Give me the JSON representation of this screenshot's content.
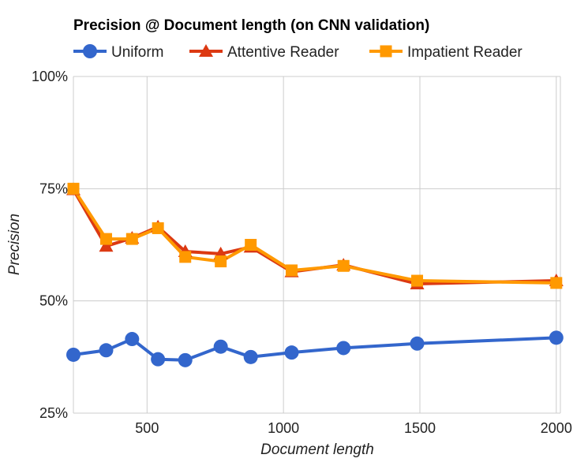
{
  "chart_data": {
    "type": "line",
    "title": "Precision @ Document length (on CNN validation)",
    "xlabel": "Document length",
    "ylabel": "Precision",
    "xlim": [
      230,
      2015
    ],
    "ylim": [
      25,
      100
    ],
    "x_ticks": [
      "500",
      "1000",
      "1500",
      "2000"
    ],
    "x_tick_values": [
      500,
      1000,
      1500,
      2000
    ],
    "y_ticks": [
      "25%",
      "50%",
      "75%",
      "100%"
    ],
    "y_tick_values": [
      25,
      50,
      75,
      100
    ],
    "grid": true,
    "legend_position": "top",
    "series": [
      {
        "name": "Uniform",
        "color": "#3366cc",
        "marker": "circle",
        "x": [
          230,
          350,
          445,
          540,
          640,
          770,
          880,
          1030,
          1220,
          1490,
          2000
        ],
        "y": [
          38.0,
          39.0,
          41.5,
          37.0,
          36.8,
          39.8,
          37.5,
          38.5,
          39.5,
          40.5,
          41.8
        ]
      },
      {
        "name": "Attentive Reader",
        "color": "#dc3912",
        "marker": "triangle",
        "x": [
          230,
          350,
          445,
          540,
          640,
          770,
          880,
          1030,
          1220,
          1490,
          2000
        ],
        "y": [
          74.8,
          62.2,
          64.0,
          66.5,
          61.0,
          60.5,
          62.0,
          56.5,
          58.0,
          53.8,
          54.5
        ]
      },
      {
        "name": "Impatient Reader",
        "color": "#ff9900",
        "marker": "square",
        "x": [
          230,
          350,
          445,
          540,
          640,
          770,
          880,
          1030,
          1220,
          1490,
          2000
        ],
        "y": [
          75.0,
          63.8,
          63.8,
          66.2,
          59.8,
          58.8,
          62.5,
          56.8,
          57.8,
          54.5,
          54.0
        ]
      }
    ]
  }
}
